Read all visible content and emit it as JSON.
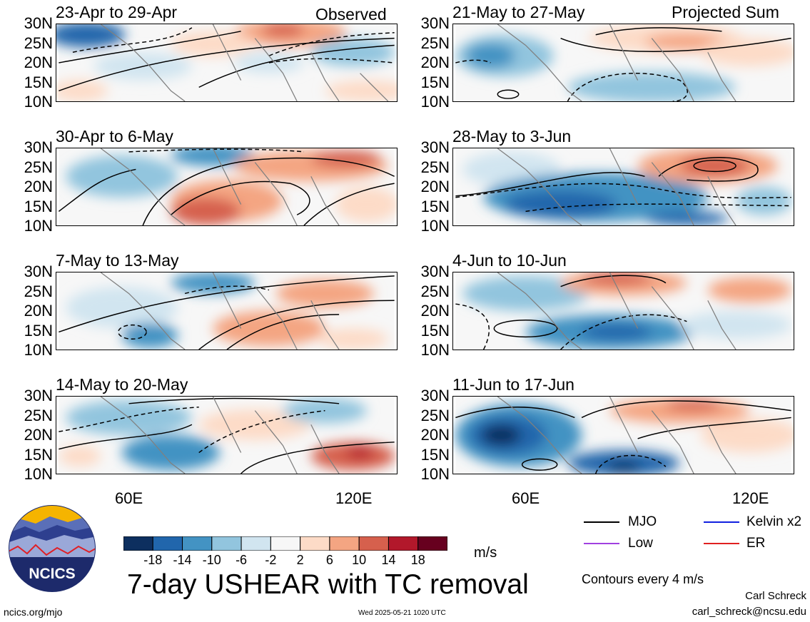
{
  "header": {
    "observed_label": "Observed",
    "projected_label": "Projected Sum"
  },
  "panels_left": [
    {
      "title": "23-Apr to 29-Apr"
    },
    {
      "title": "30-Apr to 6-May"
    },
    {
      "title": "7-May to 13-May"
    },
    {
      "title": "14-May to 20-May"
    }
  ],
  "panels_right": [
    {
      "title": "21-May to 27-May"
    },
    {
      "title": "28-May to 3-Jun"
    },
    {
      "title": "4-Jun to 10-Jun"
    },
    {
      "title": "11-Jun to 17-Jun"
    }
  ],
  "lat_labels": [
    "30N",
    "25N",
    "20N",
    "15N",
    "10N"
  ],
  "lon_labels": [
    "60E",
    "120E"
  ],
  "colorbar": {
    "labels": [
      "-18",
      "-14",
      "-10",
      "-6",
      "-2",
      "2",
      "6",
      "10",
      "14",
      "18"
    ],
    "colors": [
      "#0d2f5f",
      "#2166ac",
      "#4393c3",
      "#92c5de",
      "#d1e5f0",
      "#f7f7f7",
      "#fddbc7",
      "#f4a582",
      "#d6604d",
      "#b2182b",
      "#67001f"
    ],
    "unit": "m/s"
  },
  "title": "7-day USHEAR with TC removal",
  "legend": {
    "items": [
      {
        "label": "MJO",
        "color": "#000000"
      },
      {
        "label": "Kelvin x2",
        "color": "#1020e0"
      },
      {
        "label": "Low",
        "color": "#a040e0"
      },
      {
        "label": "ER",
        "color": "#e02020"
      }
    ],
    "contour_note": "Contours every 4 m/s"
  },
  "footer": {
    "author": "Carl Schreck",
    "email": "carl_schreck@ncsu.edu",
    "site": "ncics.org/mjo",
    "timestamp": "Wed 2025-05-21 1020 UTC",
    "logo_text": "NCICS"
  }
}
